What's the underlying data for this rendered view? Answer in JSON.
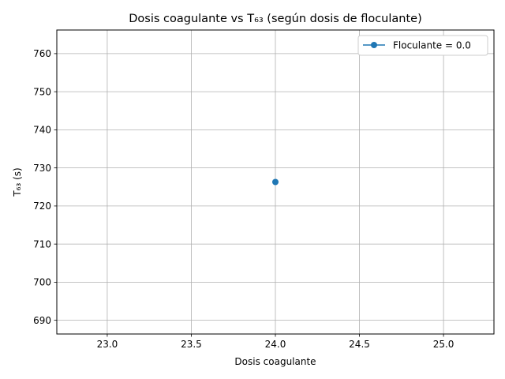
{
  "chart_data": {
    "type": "line",
    "title": "Dosis coagulante vs T₆₃ (según dosis de floculante)",
    "xlabel": "Dosis coagulante",
    "ylabel": "T₆₃ (s)",
    "xlim": [
      22.7,
      25.3
    ],
    "ylim": [
      686.4,
      766.2
    ],
    "x_ticks": [
      23.0,
      23.5,
      24.0,
      24.5,
      25.0
    ],
    "x_tick_labels": [
      "23.0",
      "23.5",
      "24.0",
      "24.5",
      "25.0"
    ],
    "y_ticks": [
      690,
      700,
      710,
      720,
      730,
      740,
      750,
      760
    ],
    "y_tick_labels": [
      "690",
      "700",
      "710",
      "720",
      "730",
      "740",
      "750",
      "760"
    ],
    "grid": true,
    "legend_position": "top-right",
    "series": [
      {
        "name": "Floculante = 0.0",
        "color": "#1f77b4",
        "marker": "circle",
        "x": [
          24.0
        ],
        "y": [
          726.3
        ]
      }
    ]
  }
}
